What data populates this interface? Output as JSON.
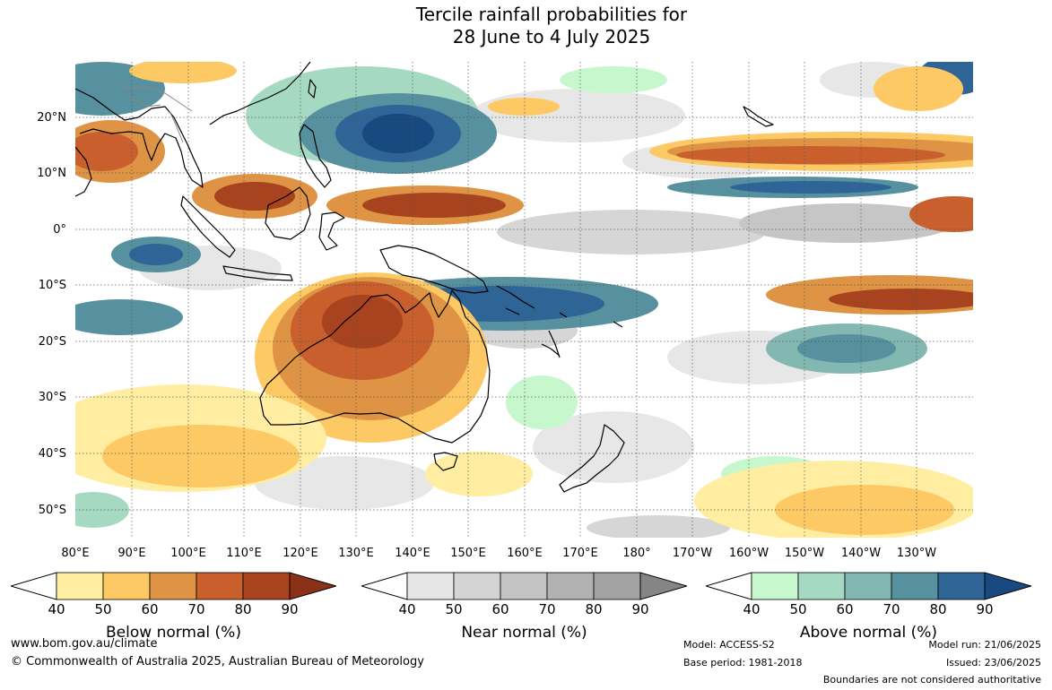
{
  "title": {
    "line1": "Tercile rainfall probabilities for",
    "line2": "28 June to 4 July 2025"
  },
  "latitude_labels": [
    "20°N",
    "10°N",
    "0°",
    "10°S",
    "20°S",
    "30°S",
    "40°S",
    "50°S"
  ],
  "longitude_labels": [
    "80°E",
    "90°E",
    "100°E",
    "110°E",
    "120°E",
    "130°E",
    "140°E",
    "150°E",
    "160°E",
    "170°E",
    "180°",
    "170°W",
    "160°W",
    "150°W",
    "140°W",
    "130°W"
  ],
  "legends": [
    {
      "label": "Below normal (%)",
      "ticks": [
        "40",
        "50",
        "60",
        "70",
        "80",
        "90"
      ],
      "colors": [
        "#ffeea1",
        "#fdc964",
        "#de9444",
        "#c85f2d",
        "#a8431f",
        "#8a3118"
      ]
    },
    {
      "label": "Near normal (%)",
      "ticks": [
        "40",
        "50",
        "60",
        "70",
        "80",
        "90"
      ],
      "colors": [
        "#e6e6e6",
        "#d4d4d4",
        "#c3c3c3",
        "#b2b2b2",
        "#a2a2a2",
        "#858585"
      ]
    },
    {
      "label": "Above normal (%)",
      "ticks": [
        "40",
        "50",
        "60",
        "70",
        "80",
        "90"
      ],
      "colors": [
        "#c7f7cd",
        "#a5d9c1",
        "#82b8b1",
        "#57909e",
        "#2e6496",
        "#184a7f"
      ]
    }
  ],
  "footer": {
    "website": "www.bom.gov.au/climate",
    "copyright": "© Commonwealth of Australia 2025, Australian Bureau of Meteorology",
    "model": "Model: ACCESS-S2",
    "base_period": "Base period: 1981-2018",
    "model_run": "Model run: 21/06/2025",
    "issued": "Issued: 23/06/2025",
    "disclaimer": "Boundaries are not considered authoritative"
  }
}
